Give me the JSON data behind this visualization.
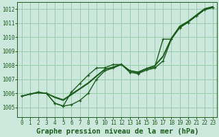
{
  "background_color": "#cce8dd",
  "grid_color": "#99ccaa",
  "line_color": "#1a5c1a",
  "xlabel": "Graphe pression niveau de la mer (hPa)",
  "xlabel_fontsize": 7.5,
  "xlim": [
    -0.5,
    23.5
  ],
  "ylim": [
    1004.3,
    1012.5
  ],
  "yticks": [
    1005,
    1006,
    1007,
    1008,
    1009,
    1010,
    1011,
    1012
  ],
  "xticks": [
    0,
    1,
    2,
    3,
    4,
    5,
    6,
    7,
    8,
    9,
    10,
    11,
    12,
    13,
    14,
    15,
    16,
    17,
    18,
    19,
    20,
    21,
    22,
    23
  ],
  "series": [
    {
      "y": [
        1005.8,
        1005.95,
        1006.1,
        1006.0,
        1005.3,
        1005.1,
        1005.2,
        1005.5,
        1006.0,
        1007.0,
        1007.6,
        1007.8,
        1008.05,
        1007.5,
        1007.4,
        1007.65,
        1007.8,
        1008.3,
        1009.85,
        1010.65,
        1011.05,
        1011.5,
        1011.95,
        1012.1
      ],
      "marker": true,
      "linewidth": 1.0
    },
    {
      "y": [
        1005.8,
        1005.95,
        1006.05,
        1006.0,
        1005.7,
        1005.5,
        1005.9,
        1006.3,
        1006.7,
        1007.2,
        1007.7,
        1007.85,
        1008.05,
        1007.6,
        1007.5,
        1007.75,
        1007.95,
        1008.6,
        1009.9,
        1010.75,
        1011.1,
        1011.55,
        1012.0,
        1012.15
      ],
      "marker": false,
      "linewidth": 1.0
    },
    {
      "y": [
        1005.8,
        1005.95,
        1006.05,
        1006.0,
        1005.75,
        1005.55,
        1005.95,
        1006.35,
        1006.75,
        1007.25,
        1007.72,
        1007.87,
        1008.07,
        1007.62,
        1007.52,
        1007.77,
        1007.97,
        1008.65,
        1009.92,
        1010.77,
        1011.12,
        1011.57,
        1012.02,
        1012.17
      ],
      "marker": false,
      "linewidth": 1.0
    },
    {
      "y": [
        1005.8,
        1005.95,
        1006.05,
        1006.0,
        1005.3,
        1005.1,
        1006.1,
        1006.7,
        1007.3,
        1007.8,
        1007.82,
        1008.05,
        1008.05,
        1007.6,
        1007.45,
        1007.75,
        1007.85,
        1009.85,
        1009.85,
        1010.7,
        1011.05,
        1011.5,
        1011.95,
        1012.1
      ],
      "marker": true,
      "linewidth": 1.0
    }
  ]
}
